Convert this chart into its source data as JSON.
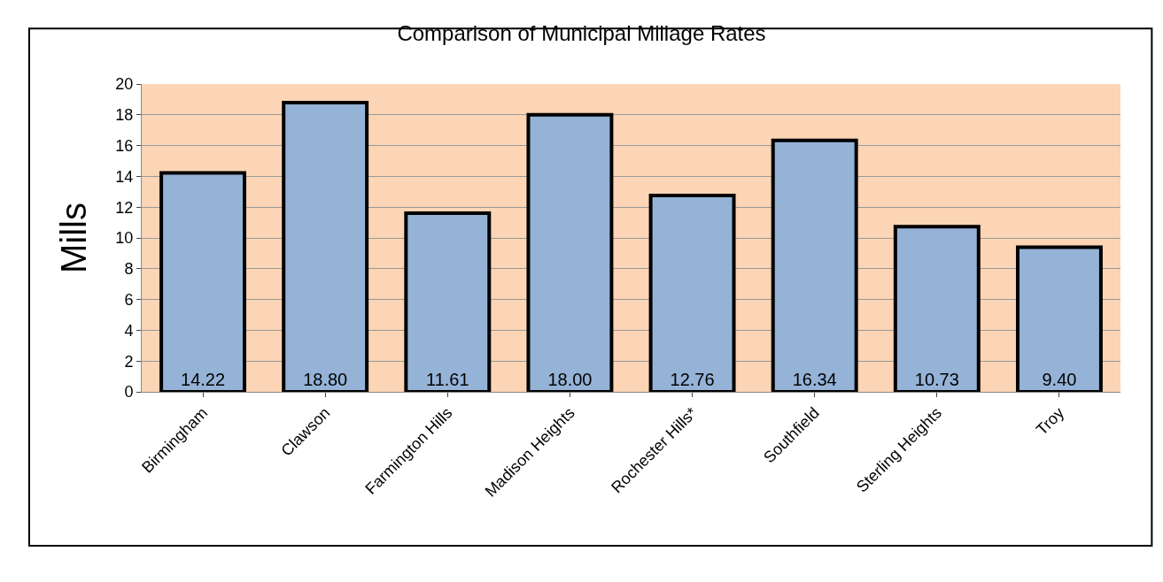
{
  "chart_data": {
    "type": "bar",
    "title": "Comparison of Municipal Millage Rates",
    "ylabel": "Mills",
    "categories": [
      "Birmingham",
      "Clawson",
      "Farmington Hills",
      "Madison Heights",
      "Rochester Hills*",
      "Southfield",
      "Sterling Heights",
      "Troy"
    ],
    "values": [
      14.22,
      18.8,
      11.61,
      18.0,
      12.76,
      16.34,
      10.73,
      9.4
    ],
    "value_labels": [
      "14.22",
      "18.80",
      "11.61",
      "18.00",
      "12.76",
      "16.34",
      "10.73",
      "9.40"
    ],
    "color": "#95b3d7",
    "ylim": [
      0,
      20
    ],
    "yticks": [
      0,
      2,
      4,
      6,
      8,
      10,
      12,
      14,
      16,
      18,
      20
    ],
    "grid": "y",
    "legend": false
  }
}
